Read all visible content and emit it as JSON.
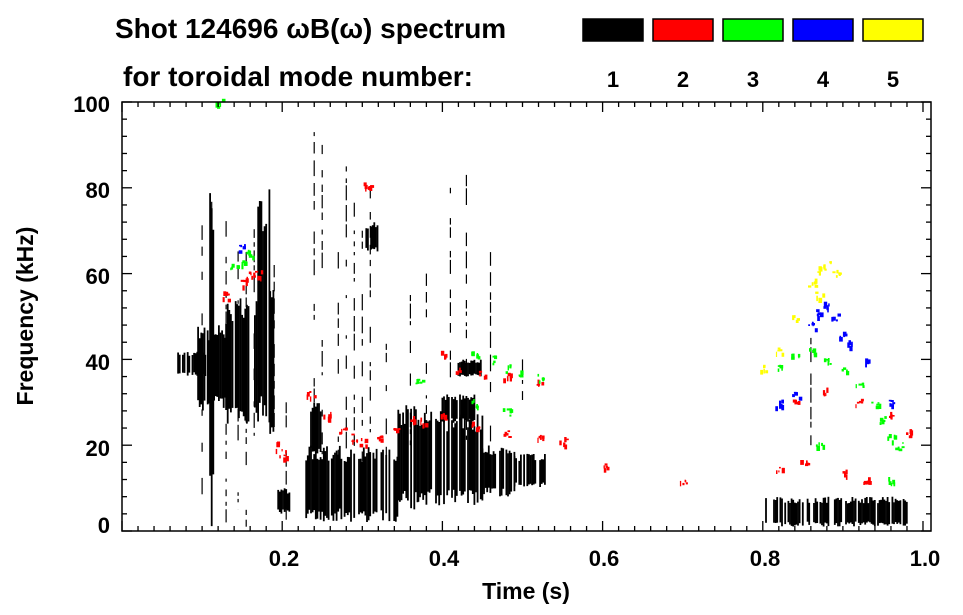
{
  "chart_data": {
    "type": "heatmap",
    "title": "Shot 124696 ωB(ω) spectrum",
    "subtitle": "for toroidal mode number:",
    "xlabel": "Time (s)",
    "ylabel": "Frequency (kHz)",
    "xlim": [
      0.0,
      1.01
    ],
    "ylim": [
      0,
      100
    ],
    "x_ticks": [
      {
        "value": 0.2,
        "label": "0.2"
      },
      {
        "value": 0.4,
        "label": "0.4"
      },
      {
        "value": 0.6,
        "label": "0.6"
      },
      {
        "value": 0.8,
        "label": "0.8"
      },
      {
        "value": 1.0,
        "label": "1.0"
      }
    ],
    "y_ticks": [
      {
        "value": 0,
        "label": "0"
      },
      {
        "value": 20,
        "label": "20"
      },
      {
        "value": 40,
        "label": "40"
      },
      {
        "value": 60,
        "label": "60"
      },
      {
        "value": 80,
        "label": "80"
      },
      {
        "value": 100,
        "label": "100"
      }
    ],
    "grid": false,
    "legend": {
      "placement": "top-right",
      "entries": [
        {
          "label": "1",
          "color": "#000000"
        },
        {
          "label": "2",
          "color": "#ff0000"
        },
        {
          "label": "3",
          "color": "#00ff00"
        },
        {
          "label": "4",
          "color": "#0000ff"
        },
        {
          "label": "5",
          "color": "#ffff00"
        }
      ]
    },
    "series": [
      {
        "name": "1",
        "color": "#000000",
        "blobs": [
          {
            "t0": 0.07,
            "t1": 0.105,
            "f0": 36,
            "f1": 42
          },
          {
            "t0": 0.095,
            "t1": 0.135,
            "f0": 28,
            "f1": 48
          },
          {
            "t0": 0.11,
            "t1": 0.115,
            "f0": 1,
            "f1": 83
          },
          {
            "t0": 0.13,
            "t1": 0.17,
            "f0": 25,
            "f1": 55
          },
          {
            "t0": 0.17,
            "t1": 0.185,
            "f0": 24,
            "f1": 80
          },
          {
            "t0": 0.185,
            "t1": 0.19,
            "f0": 20,
            "f1": 60
          },
          {
            "t0": 0.195,
            "t1": 0.21,
            "f0": 4,
            "f1": 10
          },
          {
            "t0": 0.23,
            "t1": 0.345,
            "f0": 2,
            "f1": 20
          },
          {
            "t0": 0.23,
            "t1": 0.25,
            "f0": 18,
            "f1": 30
          },
          {
            "t0": 0.305,
            "t1": 0.32,
            "f0": 65,
            "f1": 72
          },
          {
            "t0": 0.345,
            "t1": 0.37,
            "f0": 5,
            "f1": 30
          },
          {
            "t0": 0.37,
            "t1": 0.45,
            "f0": 6,
            "f1": 28
          },
          {
            "t0": 0.4,
            "t1": 0.44,
            "f0": 25,
            "f1": 32
          },
          {
            "t0": 0.42,
            "t1": 0.45,
            "f0": 36,
            "f1": 40
          },
          {
            "t0": 0.45,
            "t1": 0.49,
            "f0": 8,
            "f1": 20
          },
          {
            "t0": 0.49,
            "t1": 0.53,
            "f0": 10,
            "f1": 18
          },
          {
            "t0": 0.8,
            "t1": 0.98,
            "f0": 1,
            "f1": 8
          }
        ],
        "streaks": [
          {
            "t": 0.1,
            "f0": 1,
            "f1": 75
          },
          {
            "t": 0.112,
            "f0": 1,
            "f1": 83
          },
          {
            "t": 0.13,
            "f0": 2,
            "f1": 80
          },
          {
            "t": 0.145,
            "f0": 5,
            "f1": 70
          },
          {
            "t": 0.155,
            "f0": 1,
            "f1": 65
          },
          {
            "t": 0.165,
            "f0": 20,
            "f1": 78
          },
          {
            "t": 0.19,
            "f0": 15,
            "f1": 62
          },
          {
            "t": 0.205,
            "f0": 1,
            "f1": 30
          },
          {
            "t": 0.24,
            "f0": 5,
            "f1": 98
          },
          {
            "t": 0.25,
            "f0": 15,
            "f1": 90
          },
          {
            "t": 0.27,
            "f0": 10,
            "f1": 65
          },
          {
            "t": 0.28,
            "f0": 8,
            "f1": 85
          },
          {
            "t": 0.29,
            "f0": 10,
            "f1": 93
          },
          {
            "t": 0.3,
            "f0": 10,
            "f1": 70
          },
          {
            "t": 0.31,
            "f0": 8,
            "f1": 80
          },
          {
            "t": 0.33,
            "f0": 15,
            "f1": 60
          },
          {
            "t": 0.36,
            "f0": 20,
            "f1": 55
          },
          {
            "t": 0.38,
            "f0": 25,
            "f1": 60
          },
          {
            "t": 0.41,
            "f0": 30,
            "f1": 80
          },
          {
            "t": 0.43,
            "f0": 20,
            "f1": 83
          },
          {
            "t": 0.46,
            "f0": 20,
            "f1": 65
          },
          {
            "t": 0.5,
            "f0": 20,
            "f1": 40
          },
          {
            "t": 0.86,
            "f0": 20,
            "f1": 45
          }
        ]
      },
      {
        "name": "2",
        "color": "#ff0000",
        "trace": [
          [
            0.13,
            55
          ],
          [
            0.15,
            58
          ],
          [
            0.16,
            60
          ],
          [
            0.17,
            60
          ],
          [
            0.235,
            32
          ],
          [
            0.255,
            27
          ],
          [
            0.275,
            24
          ],
          [
            0.29,
            22
          ],
          [
            0.3,
            21
          ],
          [
            0.32,
            22
          ],
          [
            0.34,
            24
          ],
          [
            0.36,
            26
          ],
          [
            0.375,
            26
          ],
          [
            0.4,
            42
          ],
          [
            0.42,
            38
          ],
          [
            0.45,
            37
          ],
          [
            0.48,
            36
          ],
          [
            0.52,
            35
          ],
          [
            0.4,
            27
          ],
          [
            0.44,
            25
          ],
          [
            0.48,
            23
          ],
          [
            0.52,
            22
          ],
          [
            0.55,
            21
          ],
          [
            0.305,
            81
          ],
          [
            0.31,
            80
          ],
          [
            0.195,
            20
          ],
          [
            0.2,
            18
          ],
          [
            0.82,
            15
          ],
          [
            0.85,
            16
          ],
          [
            0.9,
            14
          ],
          [
            0.93,
            12
          ],
          [
            0.84,
            30
          ],
          [
            0.88,
            33
          ],
          [
            0.92,
            30
          ],
          [
            0.96,
            27
          ],
          [
            0.98,
            23
          ],
          [
            0.6,
            15
          ],
          [
            0.7,
            12
          ]
        ]
      },
      {
        "name": "3",
        "color": "#00ff00",
        "trace": [
          [
            0.14,
            62
          ],
          [
            0.15,
            63
          ],
          [
            0.16,
            65
          ],
          [
            0.44,
            41
          ],
          [
            0.46,
            40
          ],
          [
            0.48,
            38
          ],
          [
            0.5,
            37
          ],
          [
            0.52,
            36
          ],
          [
            0.44,
            30
          ],
          [
            0.48,
            28
          ],
          [
            0.37,
            35
          ],
          [
            0.82,
            38
          ],
          [
            0.84,
            41
          ],
          [
            0.86,
            42
          ],
          [
            0.88,
            40
          ],
          [
            0.9,
            38
          ],
          [
            0.92,
            34
          ],
          [
            0.94,
            30
          ],
          [
            0.95,
            26
          ],
          [
            0.96,
            22
          ],
          [
            0.97,
            20
          ],
          [
            0.87,
            20
          ],
          [
            0.96,
            12
          ],
          [
            0.12,
            100
          ]
        ]
      },
      {
        "name": "4",
        "color": "#0000ff",
        "trace": [
          [
            0.15,
            66
          ],
          [
            0.82,
            30
          ],
          [
            0.84,
            32
          ],
          [
            0.86,
            48
          ],
          [
            0.87,
            51
          ],
          [
            0.88,
            53
          ],
          [
            0.89,
            50
          ],
          [
            0.9,
            46
          ],
          [
            0.91,
            44
          ],
          [
            0.93,
            40
          ],
          [
            0.96,
            30
          ]
        ]
      },
      {
        "name": "5",
        "color": "#ffff00",
        "trace": [
          [
            0.86,
            58
          ],
          [
            0.87,
            61
          ],
          [
            0.88,
            62
          ],
          [
            0.89,
            60
          ],
          [
            0.87,
            55
          ],
          [
            0.84,
            50
          ],
          [
            0.82,
            42
          ],
          [
            0.8,
            38
          ]
        ]
      }
    ]
  }
}
